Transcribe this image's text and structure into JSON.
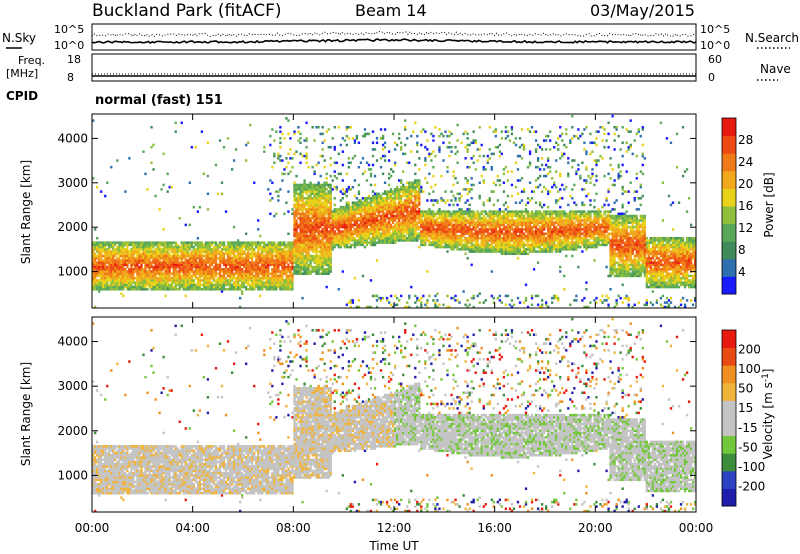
{
  "header": {
    "station": "Buckland Park (fitACF)",
    "beam": "Beam 14",
    "date": "03/May/2015"
  },
  "noise_panel": {
    "left_label": "N.Sky",
    "right_label": "N.Search",
    "left_ticks": [
      "10^5",
      "10^0"
    ],
    "right_ticks": [
      "10^5",
      "10^0"
    ]
  },
  "freq_panel": {
    "left_label_1": "Freq.",
    "left_label_2": "[MHz]",
    "right_label": "Nave",
    "left_ticks": [
      "18",
      "8"
    ],
    "right_ticks": [
      "60",
      "0"
    ]
  },
  "cpid": {
    "label": "CPID",
    "value": "normal (fast) 151"
  },
  "colors": {
    "power_scale": [
      "#1a1aff",
      "#2e6fb0",
      "#3f8c5a",
      "#59a85a",
      "#8fbf3c",
      "#e8d21a",
      "#f2a81c",
      "#f07a18",
      "#ee4a14",
      "#e81a0f"
    ],
    "velocity_scale": [
      "#1e1eaa",
      "#2b43c4",
      "#3b8c3b",
      "#73c73b",
      "#c4c4c4",
      "#c4c4c4",
      "#f0b43c",
      "#f09020",
      "#e84a14",
      "#e81a0f"
    ]
  },
  "chart_data": [
    {
      "type": "heatmap",
      "panel": "power",
      "ylabel": "Slant Range [km]",
      "yticks": [
        "1000",
        "2000",
        "3000",
        "4000"
      ],
      "ylim": [
        180,
        4550
      ],
      "xlim": [
        0,
        24
      ],
      "colorbar": {
        "label": "Power [dB]",
        "ticks": [
          "4",
          "8",
          "12",
          "16",
          "20",
          "24",
          "28"
        ],
        "range": [
          0,
          32
        ]
      },
      "features": [
        {
          "t0": 0,
          "t1": 9,
          "range_km": [
            600,
            1700
          ],
          "dB": 24
        },
        {
          "t0": 9,
          "t1": 21,
          "range_km": [
            1600,
            2300
          ],
          "dB": 20
        },
        {
          "t0": 7.5,
          "t1": 12,
          "range_km": [
            2300,
            3500
          ],
          "dB": 22
        },
        {
          "t0": 21,
          "t1": 24,
          "range_km": [
            700,
            1600
          ],
          "dB": 26
        }
      ]
    },
    {
      "type": "heatmap",
      "panel": "velocity",
      "ylabel": "Slant Range [km]",
      "yticks": [
        "1000",
        "2000",
        "3000",
        "4000"
      ],
      "ylim": [
        180,
        4550
      ],
      "xlim": [
        0,
        24
      ],
      "xticks": [
        "00:00",
        "04:00",
        "08:00",
        "12:00",
        "16:00",
        "20:00",
        "00:00"
      ],
      "xlabel": "Time UT",
      "colorbar": {
        "label_main": "Velocity [m s",
        "label_sup": "-1",
        "label_end": "]",
        "ticks": [
          "200",
          "100",
          "50",
          "15",
          "-15",
          "-50",
          "-100",
          "-200"
        ],
        "range": [
          -250,
          250
        ]
      }
    }
  ]
}
